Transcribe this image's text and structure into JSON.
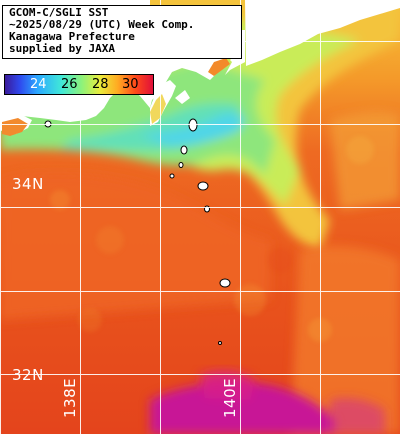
{
  "info": {
    "line1": "GCOM-C/SGLI SST",
    "line2": "~2025/08/29 (UTC) Week Comp.",
    "line3": "Kanagawa Prefecture",
    "line4": "supplied by JAXA"
  },
  "legend": {
    "ticks": [
      "24",
      "26",
      "28",
      "30"
    ],
    "tick_colors": [
      "#ffffff",
      "#000000",
      "#000000",
      "#000000"
    ]
  },
  "grid_labels": {
    "lat_34": "34N",
    "lat_32": "32N",
    "lon_138": "138E",
    "lon_140": "140E"
  },
  "colors": {
    "sea_warm": "#e8541c",
    "sea_cool": "#9be87a",
    "land": "#ffffff",
    "grid": "#ffffff",
    "hot_patch": "#c2189f"
  }
}
